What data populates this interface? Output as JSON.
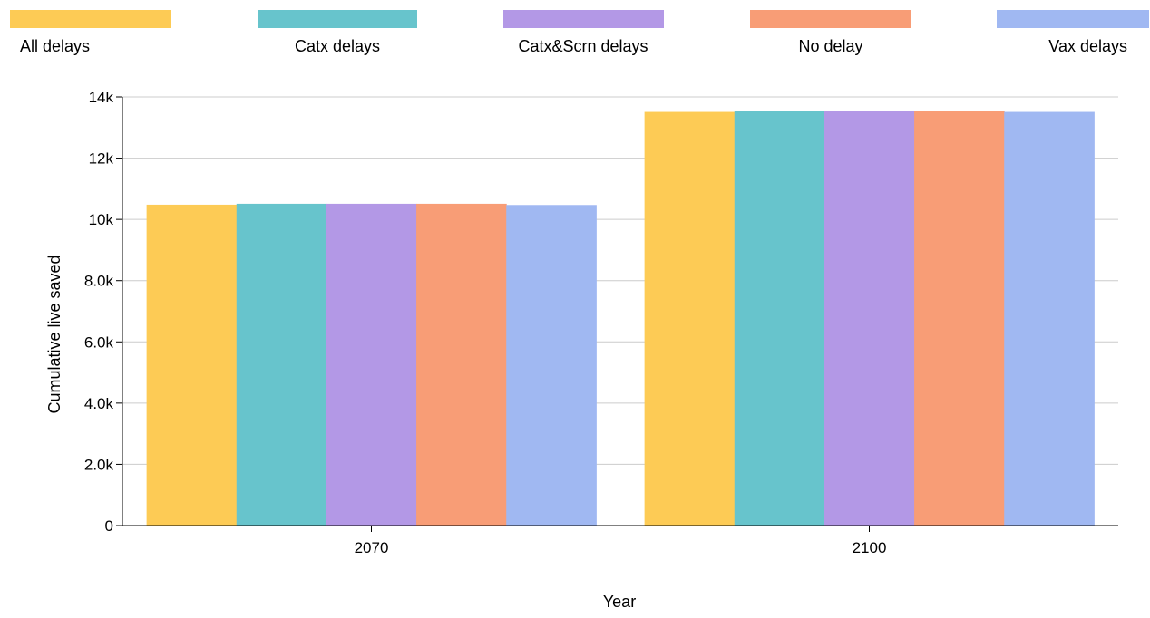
{
  "chart_data": {
    "type": "bar",
    "xlabel": "Year",
    "ylabel": "Cumulative live saved",
    "categories": [
      "2070",
      "2100"
    ],
    "ylim": [
      0,
      14000
    ],
    "yticks": [
      0,
      2000,
      4000,
      6000,
      8000,
      10000,
      12000,
      14000
    ],
    "ytick_labels": [
      "0",
      "2.0k",
      "4.0k",
      "6.0k",
      "8.0k",
      "10k",
      "12k",
      "14k"
    ],
    "grid": true,
    "legend_position": "top",
    "series": [
      {
        "name": "All delays",
        "color": "#FDCB55",
        "values": [
          10480,
          13510
        ]
      },
      {
        "name": "Catx delays",
        "color": "#67C4CC",
        "values": [
          10510,
          13540
        ]
      },
      {
        "name": "Catx&Scrn delays",
        "color": "#B398E6",
        "values": [
          10510,
          13540
        ]
      },
      {
        "name": "No delay",
        "color": "#F89D76",
        "values": [
          10510,
          13540
        ]
      },
      {
        "name": "Vax delays",
        "color": "#A0B8F2",
        "values": [
          10470,
          13510
        ]
      }
    ]
  }
}
